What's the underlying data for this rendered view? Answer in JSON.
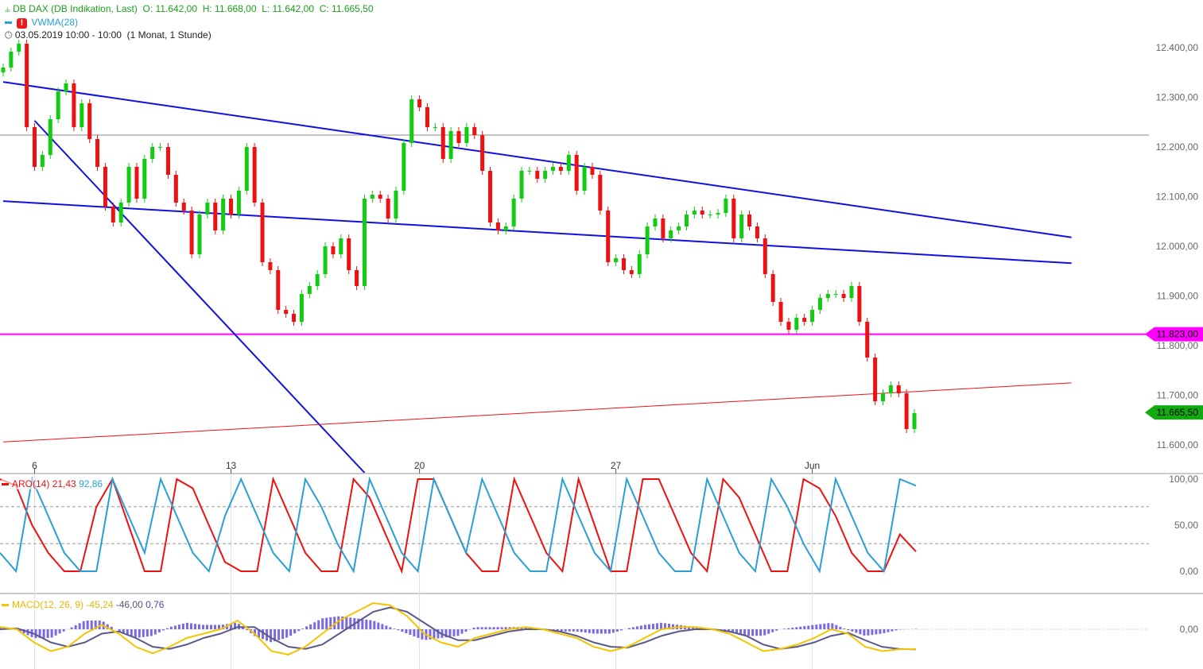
{
  "header": {
    "title": "DB DAX (DB Indikation, Last)",
    "ohlc": "O: 11.642,00  H: 11.668,00  L: 11.642,00  C: 11.665,50",
    "indicator": "VWMA(28)",
    "date_range": "03.05.2019 10:00 - 10:00",
    "period": "(1 Monat, 1 Stunde)",
    "icons": [
      "bars-icon",
      "alert-icon",
      "clock-icon"
    ]
  },
  "colors": {
    "up": "#11cc11",
    "down": "#ee1111",
    "trend": "#1010e0",
    "support": "#ff00ff",
    "red_line": "#ee1111",
    "aroon_up": "#2a9fd6",
    "aroon_down": "#ee1111",
    "macd": "#f5c400",
    "signal": "#5a5a8a",
    "hist": "#7a6ae0",
    "last_price": "#11aa11"
  },
  "chart_data": [
    {
      "type": "candlestick",
      "ylim": [
        11540,
        12440
      ],
      "yticks": [
        "12.400,00",
        "12.300,00",
        "12.200,00",
        "12.100,00",
        "12.000,00",
        "11.900,00",
        "11.800,00",
        "11.700,00",
        "11.600,00"
      ],
      "ytick_values": [
        12400,
        12300,
        12200,
        12100,
        12000,
        11900,
        11800,
        11700,
        11600
      ],
      "xticks": [
        {
          "label": "6",
          "bar": 4
        },
        {
          "label": "13",
          "bar": 29
        },
        {
          "label": "20",
          "bar": 53
        },
        {
          "label": "27",
          "bar": 78
        },
        {
          "label": "Jun",
          "bar": 103
        }
      ],
      "closes": [
        12360,
        12392,
        12408,
        12240,
        12160,
        12184,
        12256,
        12312,
        12328,
        12240,
        12288,
        12216,
        12160,
        12080,
        12048,
        12088,
        12160,
        12096,
        12176,
        12200,
        12200,
        12144,
        12088,
        12072,
        11984,
        12064,
        12088,
        12032,
        12096,
        12064,
        12112,
        12200,
        12088,
        11968,
        11952,
        11872,
        11864,
        11848,
        11904,
        11920,
        11944,
        12000,
        11984,
        12016,
        11952,
        11920,
        12096,
        12104,
        12096,
        12056,
        12112,
        12208,
        12296,
        12280,
        12240,
        12240,
        12176,
        12232,
        12208,
        12240,
        12224,
        12152,
        12048,
        12032,
        12040,
        12096,
        12152,
        12152,
        12136,
        12152,
        12160,
        12152,
        12184,
        12112,
        12160,
        12144,
        12072,
        11968,
        11976,
        11952,
        11944,
        11984,
        12040,
        12056,
        12016,
        12032,
        12040,
        12064,
        12072,
        12064,
        12064,
        12067,
        12096,
        12016,
        12064,
        12040,
        12016,
        11944,
        11888,
        11848,
        11832,
        11856,
        11848,
        11872,
        11896,
        11904,
        11904,
        11896,
        11920,
        11848,
        11776,
        11688,
        11704,
        11720,
        11704,
        11632,
        11664
      ],
      "trendlines": [
        {
          "color": "trend",
          "from": {
            "bar": 0,
            "price": 12331
          },
          "to": {
            "bar": 136,
            "price": 12018
          }
        },
        {
          "color": "trend",
          "from": {
            "bar": 0,
            "price": 12091
          },
          "to": {
            "bar": 136,
            "price": 11966
          }
        },
        {
          "color": "trend",
          "from": {
            "bar": 4,
            "price": 12253
          },
          "to": {
            "bar": 46,
            "price": 11544
          }
        },
        {
          "color": "red_line",
          "from": {
            "bar": 0,
            "price": 11606
          },
          "to": {
            "bar": 136,
            "price": 11725
          }
        }
      ],
      "hlines": [
        {
          "price": 12224,
          "color": "#888888"
        },
        {
          "price": 11823,
          "color": "support",
          "label": "11.823,00"
        }
      ],
      "last": {
        "price": 11665.5,
        "label": "11.665,50"
      }
    },
    {
      "type": "line",
      "name": "ARO(14)",
      "legend": {
        "label": "ARO(14)",
        "down": "21,43",
        "up": "92,86"
      },
      "ylim": [
        0,
        100
      ],
      "yticks": [
        "100,00",
        "50,00",
        "0,00"
      ],
      "ytick_values": [
        100,
        50,
        0
      ],
      "ref_lines": [
        70,
        30
      ],
      "down": [
        100,
        93,
        50,
        20,
        0,
        0,
        70,
        100,
        50,
        0,
        0,
        100,
        90,
        50,
        10,
        0,
        0,
        100,
        60,
        20,
        0,
        0,
        100,
        80,
        40,
        0,
        100,
        100,
        60,
        20,
        0,
        0,
        100,
        60,
        20,
        0,
        100,
        50,
        0,
        0,
        100,
        100,
        60,
        20,
        0,
        100,
        80,
        40,
        0,
        0,
        100,
        90,
        60,
        20,
        0,
        0,
        40,
        21.43
      ],
      "up": [
        20,
        0,
        100,
        60,
        20,
        0,
        0,
        100,
        60,
        20,
        100,
        60,
        20,
        0,
        60,
        100,
        60,
        20,
        0,
        100,
        70,
        30,
        0,
        100,
        60,
        20,
        0,
        100,
        60,
        20,
        100,
        60,
        20,
        0,
        0,
        100,
        60,
        20,
        0,
        100,
        60,
        20,
        0,
        0,
        100,
        60,
        20,
        0,
        100,
        70,
        30,
        0,
        100,
        60,
        20,
        0,
        100,
        92.86
      ]
    },
    {
      "type": "line",
      "name": "MACD(12, 26, 9)",
      "legend": {
        "label": "MACD(12, 26, 9)",
        "macd": "-45,24",
        "signal": "-46,00",
        "hist": "0,76"
      },
      "yticks": [
        "0,00"
      ],
      "ytick_values": [
        0
      ],
      "ylim": [
        -90,
        80
      ],
      "macd": [
        5,
        0,
        -30,
        -50,
        -40,
        -10,
        10,
        -10,
        -40,
        -55,
        -40,
        -20,
        -10,
        0,
        20,
        -10,
        -50,
        -58,
        -40,
        -10,
        20,
        40,
        60,
        55,
        30,
        -10,
        -30,
        -40,
        -20,
        -10,
        0,
        5,
        0,
        -10,
        -20,
        -40,
        -50,
        -40,
        -20,
        0,
        5,
        5,
        0,
        -10,
        -30,
        -50,
        -45,
        -35,
        -20,
        0,
        -10,
        -40,
        -50,
        -46,
        -45.24
      ],
      "signal": [
        0,
        2,
        -10,
        -30,
        -40,
        -30,
        -10,
        -5,
        -20,
        -40,
        -45,
        -35,
        -20,
        -10,
        5,
        5,
        -20,
        -40,
        -45,
        -35,
        -10,
        15,
        40,
        50,
        40,
        15,
        -10,
        -25,
        -25,
        -15,
        -5,
        0,
        0,
        -5,
        -15,
        -30,
        -40,
        -42,
        -30,
        -15,
        -5,
        0,
        0,
        -5,
        -15,
        -35,
        -45,
        -40,
        -30,
        -15,
        -8,
        -25,
        -40,
        -45,
        -46
      ]
    }
  ]
}
